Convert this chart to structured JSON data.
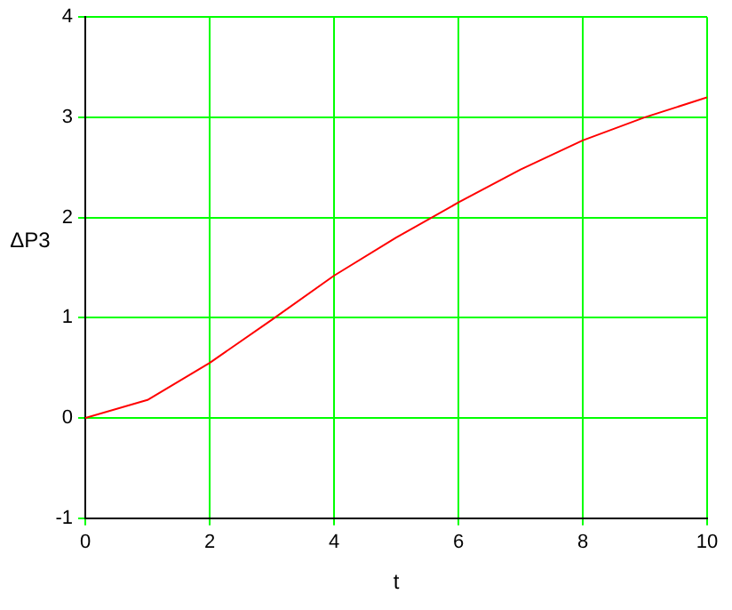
{
  "chart_data": {
    "type": "line",
    "xlabel": "t",
    "ylabel": "ΔP3",
    "series": [
      {
        "color": "#ff0000",
        "x": [
          0,
          1,
          2,
          3,
          4,
          5,
          6,
          7,
          8,
          9,
          10
        ],
        "values": [
          0,
          0.18,
          0.55,
          0.98,
          1.42,
          1.8,
          2.15,
          2.48,
          2.77,
          3.0,
          3.2
        ]
      }
    ],
    "xlim": [
      0,
      10
    ],
    "xticks": [
      0,
      2,
      4,
      6,
      8,
      10
    ],
    "ylim": [
      -1,
      4
    ],
    "yticks": [
      -1,
      0,
      1,
      2,
      3,
      4
    ],
    "grid": true,
    "legend": false,
    "marker": "none",
    "line_style": "solid"
  }
}
